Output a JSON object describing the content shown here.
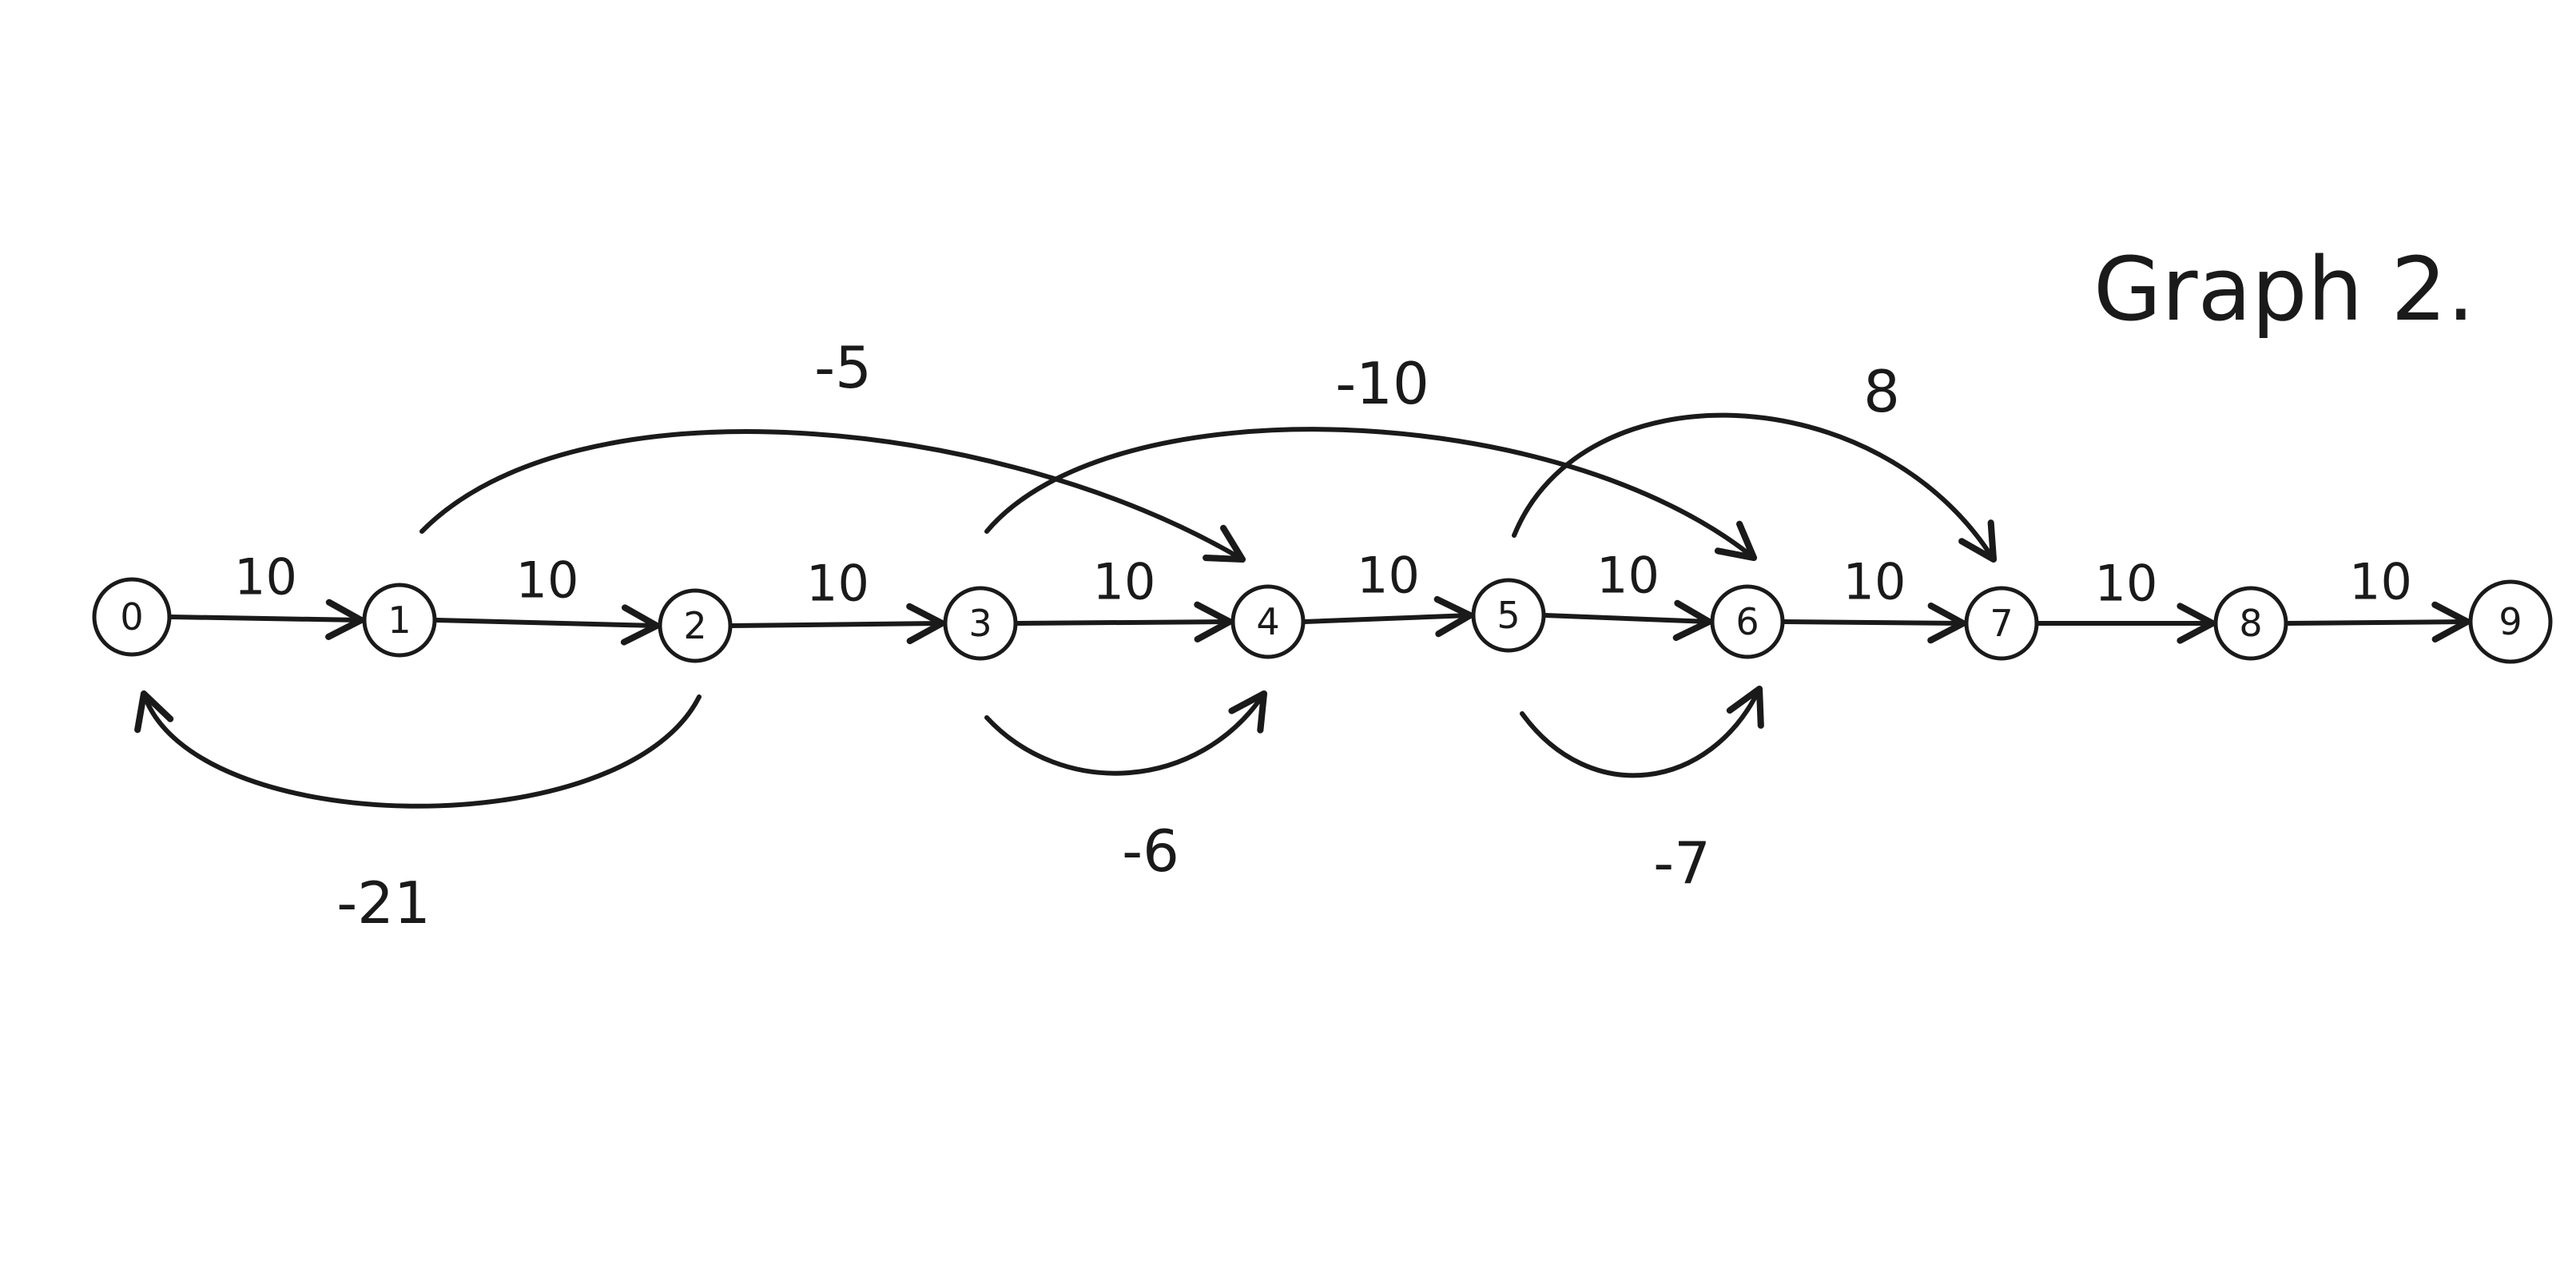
{
  "title": "Graph 2.",
  "colors": {
    "ink": "#1a1a1a",
    "paper": "#ffffff"
  },
  "nodes": [
    {
      "id": "0",
      "label": "0"
    },
    {
      "id": "1",
      "label": "1"
    },
    {
      "id": "2",
      "label": "2"
    },
    {
      "id": "3",
      "label": "3"
    },
    {
      "id": "4",
      "label": "4"
    },
    {
      "id": "5",
      "label": "5"
    },
    {
      "id": "6",
      "label": "6"
    },
    {
      "id": "7",
      "label": "7"
    },
    {
      "id": "8",
      "label": "8"
    },
    {
      "id": "9",
      "label": "9"
    }
  ],
  "edges": [
    {
      "from": "0",
      "to": "1",
      "weight": "10"
    },
    {
      "from": "1",
      "to": "2",
      "weight": "10"
    },
    {
      "from": "2",
      "to": "3",
      "weight": "10"
    },
    {
      "from": "3",
      "to": "4",
      "weight": "10"
    },
    {
      "from": "4",
      "to": "5",
      "weight": "10"
    },
    {
      "from": "5",
      "to": "6",
      "weight": "10"
    },
    {
      "from": "6",
      "to": "7",
      "weight": "10"
    },
    {
      "from": "7",
      "to": "8",
      "weight": "10"
    },
    {
      "from": "8",
      "to": "9",
      "weight": "10"
    },
    {
      "from": "1",
      "to": "4",
      "weight": "-5"
    },
    {
      "from": "3",
      "to": "6",
      "weight": "-10"
    },
    {
      "from": "5",
      "to": "7",
      "weight": "8"
    },
    {
      "from": "2",
      "to": "0",
      "weight": "-21"
    },
    {
      "from": "3",
      "to": "4",
      "weight": "-6"
    },
    {
      "from": "5",
      "to": "6",
      "weight": "-7"
    }
  ]
}
